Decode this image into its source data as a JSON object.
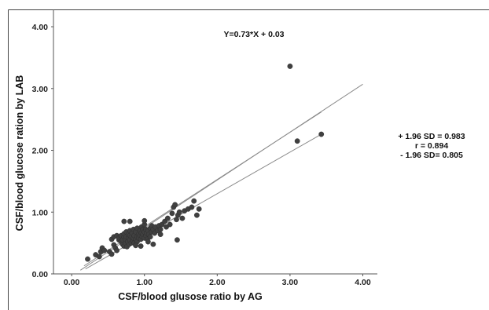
{
  "chart_data": {
    "type": "scatter",
    "xlabel": "CSF/blood glusose ratio by AG",
    "ylabel": "CSF/blood glucose ration by LAB",
    "xlim": [
      -0.25,
      4.2
    ],
    "ylim": [
      0,
      4.28
    ],
    "x_ticks": [
      "0.00",
      "1.00",
      "2.00",
      "3.00",
      "4.00"
    ],
    "y_ticks": [
      "0.00",
      "1.00",
      "2.00",
      "3.00",
      "4.00"
    ],
    "annotation": "Y=0.73*X + 0.03",
    "stats": [
      "+ 1.96 SD = 0.983",
      "r = 0.894",
      "- 1.96 SD= 0.805"
    ],
    "grid": false,
    "colors": {
      "point": "#404040",
      "line": "#8a8a8a",
      "axis": "#555555",
      "border": "#444444"
    },
    "lines": [
      {
        "x": [
          0.12,
          4.0
        ],
        "y": [
          0.06,
          3.07
        ]
      },
      {
        "x": [
          0.17,
          3.43
        ],
        "y": [
          0.13,
          2.62
        ]
      },
      {
        "x": [
          0.19,
          3.43
        ],
        "y": [
          0.08,
          2.26
        ]
      }
    ],
    "points": [
      [
        0.22,
        0.24
      ],
      [
        0.33,
        0.31
      ],
      [
        0.38,
        0.28
      ],
      [
        0.4,
        0.36
      ],
      [
        0.42,
        0.42
      ],
      [
        0.45,
        0.38
      ],
      [
        0.52,
        0.36
      ],
      [
        0.55,
        0.32
      ],
      [
        0.58,
        0.47
      ],
      [
        0.6,
        0.42
      ],
      [
        0.62,
        0.38
      ],
      [
        0.55,
        0.56
      ],
      [
        0.58,
        0.6
      ],
      [
        0.62,
        0.62
      ],
      [
        0.65,
        0.55
      ],
      [
        0.65,
        0.58
      ],
      [
        0.68,
        0.52
      ],
      [
        0.68,
        0.62
      ],
      [
        0.7,
        0.48
      ],
      [
        0.7,
        0.55
      ],
      [
        0.72,
        0.45
      ],
      [
        0.72,
        0.6
      ],
      [
        0.72,
        0.65
      ],
      [
        0.74,
        0.5
      ],
      [
        0.74,
        0.56
      ],
      [
        0.75,
        0.6
      ],
      [
        0.75,
        0.68
      ],
      [
        0.76,
        0.44
      ],
      [
        0.77,
        0.52
      ],
      [
        0.78,
        0.58
      ],
      [
        0.78,
        0.64
      ],
      [
        0.79,
        0.48
      ],
      [
        0.8,
        0.55
      ],
      [
        0.8,
        0.62
      ],
      [
        0.8,
        0.7
      ],
      [
        0.82,
        0.5
      ],
      [
        0.82,
        0.6
      ],
      [
        0.83,
        0.66
      ],
      [
        0.84,
        0.54
      ],
      [
        0.85,
        0.58
      ],
      [
        0.85,
        0.72
      ],
      [
        0.86,
        0.62
      ],
      [
        0.86,
        0.5
      ],
      [
        0.88,
        0.68
      ],
      [
        0.88,
        0.56
      ],
      [
        0.9,
        0.6
      ],
      [
        0.9,
        0.74
      ],
      [
        0.9,
        0.52
      ],
      [
        0.92,
        0.64
      ],
      [
        0.92,
        0.58
      ],
      [
        0.94,
        0.7
      ],
      [
        0.94,
        0.62
      ],
      [
        0.95,
        0.56
      ],
      [
        0.96,
        0.66
      ],
      [
        0.96,
        0.76
      ],
      [
        0.97,
        0.6
      ],
      [
        0.98,
        0.72
      ],
      [
        0.98,
        0.64
      ],
      [
        1.0,
        0.68
      ],
      [
        1.0,
        0.58
      ],
      [
        1.0,
        0.8
      ],
      [
        1.02,
        0.62
      ],
      [
        1.02,
        0.72
      ],
      [
        1.03,
        0.66
      ],
      [
        1.04,
        0.56
      ],
      [
        1.05,
        0.7
      ],
      [
        1.06,
        0.64
      ],
      [
        1.08,
        0.74
      ],
      [
        1.08,
        0.6
      ],
      [
        1.1,
        0.68
      ],
      [
        1.1,
        0.78
      ],
      [
        1.12,
        0.72
      ],
      [
        1.14,
        0.66
      ],
      [
        1.15,
        0.76
      ],
      [
        1.18,
        0.7
      ],
      [
        1.2,
        0.78
      ],
      [
        1.22,
        0.72
      ],
      [
        1.24,
        0.8
      ],
      [
        1.28,
        0.85
      ],
      [
        1.3,
        0.76
      ],
      [
        1.32,
        0.9
      ],
      [
        1.35,
        0.8
      ],
      [
        1.38,
        0.98
      ],
      [
        1.4,
        1.08
      ],
      [
        1.42,
        1.12
      ],
      [
        1.44,
        0.88
      ],
      [
        1.46,
        0.95
      ],
      [
        1.48,
        1.0
      ],
      [
        1.52,
        0.9
      ],
      [
        1.55,
        1.02
      ],
      [
        1.6,
        1.05
      ],
      [
        1.65,
        1.08
      ],
      [
        1.68,
        1.18
      ],
      [
        1.72,
        0.95
      ],
      [
        1.75,
        1.05
      ],
      [
        0.72,
        0.85
      ],
      [
        0.8,
        0.85
      ],
      [
        1.0,
        0.86
      ],
      [
        1.12,
        0.48
      ],
      [
        1.45,
        0.55
      ],
      [
        1.22,
        0.64
      ],
      [
        0.95,
        0.45
      ],
      [
        1.05,
        0.52
      ],
      [
        0.88,
        0.46
      ],
      [
        3.0,
        3.36
      ],
      [
        3.1,
        2.15
      ],
      [
        3.43,
        2.26
      ]
    ]
  }
}
